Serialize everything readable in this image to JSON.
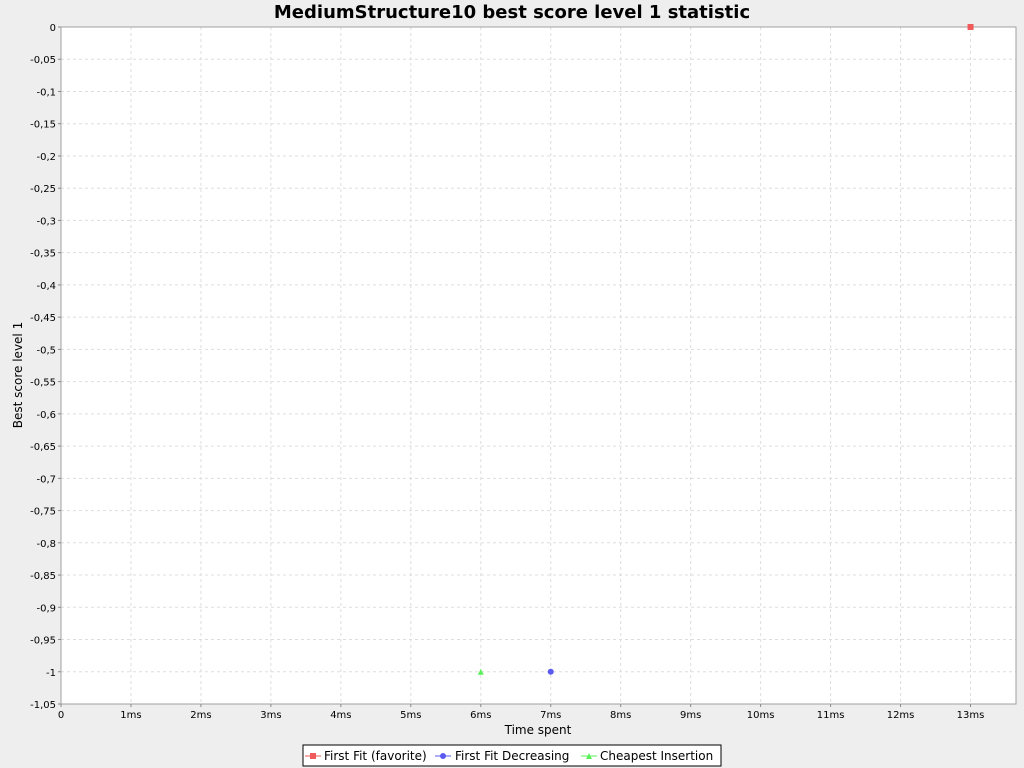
{
  "chart_data": {
    "type": "scatter",
    "title": "MediumStructure10 best score level 1 statistic",
    "xlabel": "Time spent",
    "ylabel": "Best score level 1",
    "xlim": [
      0,
      13.65
    ],
    "ylim": [
      -1.05,
      0
    ],
    "x_ticks": [
      0,
      1,
      2,
      3,
      4,
      5,
      6,
      7,
      8,
      9,
      10,
      11,
      12,
      13
    ],
    "x_tick_labels": [
      "0",
      "1ms",
      "2ms",
      "3ms",
      "4ms",
      "5ms",
      "6ms",
      "7ms",
      "8ms",
      "9ms",
      "10ms",
      "11ms",
      "12ms",
      "13ms"
    ],
    "y_ticks": [
      0,
      -0.05,
      -0.1,
      -0.15,
      -0.2,
      -0.25,
      -0.3,
      -0.35,
      -0.4,
      -0.45,
      -0.5,
      -0.55,
      -0.6,
      -0.65,
      -0.7,
      -0.75,
      -0.8,
      -0.85,
      -0.9,
      -0.95,
      -1,
      -1.05
    ],
    "y_tick_labels": [
      "0",
      "-0,05",
      "-0,1",
      "-0,15",
      "-0,2",
      "-0,25",
      "-0,3",
      "-0,35",
      "-0,4",
      "-0,45",
      "-0,5",
      "-0,55",
      "-0,6",
      "-0,65",
      "-0,7",
      "-0,75",
      "-0,8",
      "-0,85",
      "-0,9",
      "-0,95",
      "-1",
      "-1,05"
    ],
    "grid": true,
    "legend_position": "bottom",
    "series": [
      {
        "name": "First Fit (favorite)",
        "color": "#f05a5a",
        "marker": "square",
        "points": [
          {
            "x": 13,
            "y": 0
          }
        ]
      },
      {
        "name": "First Fit Decreasing",
        "color": "#5a5af0",
        "marker": "circle",
        "points": [
          {
            "x": 7,
            "y": -1
          }
        ]
      },
      {
        "name": "Cheapest Insertion",
        "color": "#5af05a",
        "marker": "triangle",
        "points": [
          {
            "x": 6,
            "y": -1
          }
        ]
      }
    ]
  }
}
